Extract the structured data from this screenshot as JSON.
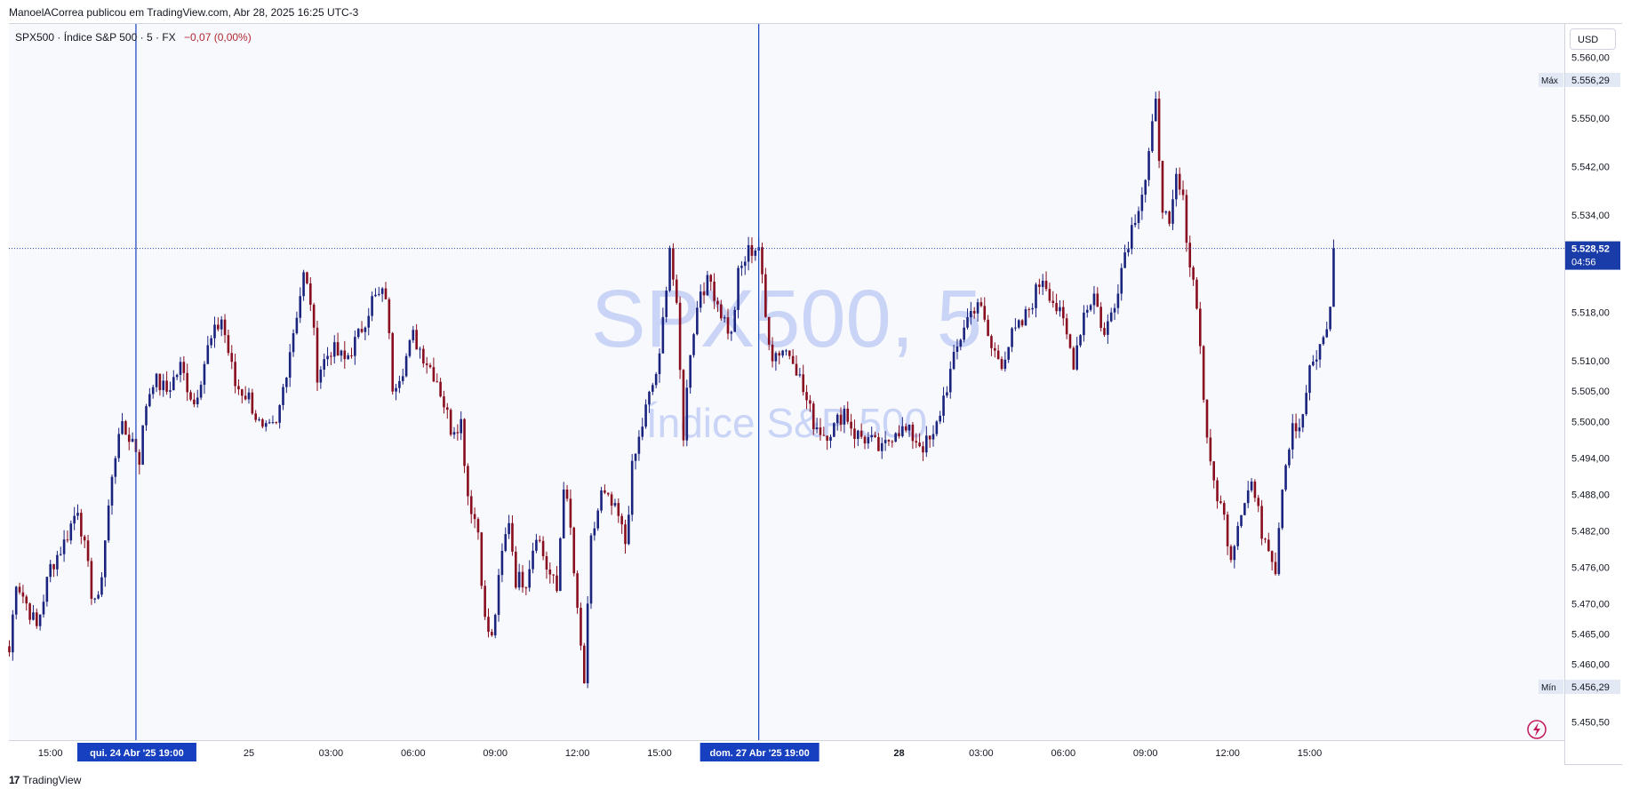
{
  "header": {
    "publisher_text": "ManoelACorrea publicou em TradingView.com, Abr 28, 2025 16:25 UTC-3"
  },
  "legend": {
    "symbol": "SPX500",
    "description": "Índice S&P 500",
    "interval": "5",
    "source": "FX",
    "change": "−0,07 (0,00%)"
  },
  "watermark": {
    "line1": "SPX500, 5",
    "line2": "Índice S&P 500"
  },
  "currency_button": "USD",
  "footer": {
    "brand": "TradingView"
  },
  "colors": {
    "up": "#1a237e",
    "down": "#880e1f",
    "marker_line": "#1640bf",
    "watermark": "#c9d4f6",
    "last_price_bg": "#1a3ca8"
  },
  "chart_data": {
    "type": "candlestick",
    "interval_minutes": 5,
    "ylim": [
      5447.5,
      5565.5
    ],
    "price_ticks": [
      {
        "value": 5560,
        "label": "5.560,00"
      },
      {
        "value": 5550,
        "label": "5.550,00"
      },
      {
        "value": 5542,
        "label": "5.542,00"
      },
      {
        "value": 5534,
        "label": "5.534,00"
      },
      {
        "value": 5518,
        "label": "5.518,00"
      },
      {
        "value": 5510,
        "label": "5.510,00"
      },
      {
        "value": 5505,
        "label": "5.505,00"
      },
      {
        "value": 5500,
        "label": "5.500,00"
      },
      {
        "value": 5494,
        "label": "5.494,00"
      },
      {
        "value": 5488,
        "label": "5.488,00"
      },
      {
        "value": 5482,
        "label": "5.482,00"
      },
      {
        "value": 5476,
        "label": "5.476,00"
      },
      {
        "value": 5470,
        "label": "5.470,00"
      },
      {
        "value": 5465,
        "label": "5.465,00"
      },
      {
        "value": 5460,
        "label": "5.460,00"
      },
      {
        "value": 5450.5,
        "label": "5.450,50"
      }
    ],
    "time_ticks": [
      {
        "bar": 12,
        "label": "15:00",
        "bold": false
      },
      {
        "bar": 70,
        "label": "25",
        "bold": false
      },
      {
        "bar": 94,
        "label": "03:00",
        "bold": false
      },
      {
        "bar": 118,
        "label": "06:00",
        "bold": false
      },
      {
        "bar": 142,
        "label": "09:00",
        "bold": false
      },
      {
        "bar": 166,
        "label": "12:00",
        "bold": false
      },
      {
        "bar": 190,
        "label": "15:00",
        "bold": false
      },
      {
        "bar": 260,
        "label": "28",
        "bold": true
      },
      {
        "bar": 284,
        "label": "03:00",
        "bold": false
      },
      {
        "bar": 308,
        "label": "06:00",
        "bold": false
      },
      {
        "bar": 332,
        "label": "09:00",
        "bold": false
      },
      {
        "bar": 356,
        "label": "12:00",
        "bold": false
      },
      {
        "bar": 380,
        "label": "15:00",
        "bold": false
      }
    ],
    "markers": [
      {
        "bar": 37,
        "label": "qui. 24 Abr '25   19:00"
      },
      {
        "bar": 219,
        "label": "dom. 27 Abr '25   19:00"
      }
    ],
    "last_price": {
      "value": 5528.52,
      "label": "5.528,52",
      "countdown": "04:56"
    },
    "high": {
      "value": 5556.29,
      "label": "5.556,29",
      "tag": "Máx"
    },
    "low": {
      "value": 5456.29,
      "label": "5.456,29",
      "tag": "Mín"
    },
    "close_path": [
      [
        0,
        5462
      ],
      [
        2,
        5474
      ],
      [
        5,
        5470
      ],
      [
        8,
        5466
      ],
      [
        12,
        5476
      ],
      [
        16,
        5480
      ],
      [
        20,
        5486
      ],
      [
        24,
        5472
      ],
      [
        26,
        5470
      ],
      [
        29,
        5486
      ],
      [
        32,
        5499
      ],
      [
        36,
        5497
      ],
      [
        38,
        5494
      ],
      [
        40,
        5503
      ],
      [
        42,
        5507
      ],
      [
        46,
        5505
      ],
      [
        50,
        5509
      ],
      [
        54,
        5503
      ],
      [
        58,
        5512
      ],
      [
        62,
        5517
      ],
      [
        66,
        5506
      ],
      [
        70,
        5504
      ],
      [
        74,
        5498
      ],
      [
        78,
        5499
      ],
      [
        82,
        5512
      ],
      [
        86,
        5524
      ],
      [
        88,
        5520
      ],
      [
        90,
        5508
      ],
      [
        94,
        5512
      ],
      [
        98,
        5510
      ],
      [
        102,
        5514
      ],
      [
        106,
        5520
      ],
      [
        110,
        5521
      ],
      [
        112,
        5506
      ],
      [
        115,
        5509
      ],
      [
        118,
        5514
      ],
      [
        121,
        5511
      ],
      [
        125,
        5507
      ],
      [
        129,
        5499
      ],
      [
        132,
        5500
      ],
      [
        134,
        5488
      ],
      [
        137,
        5482
      ],
      [
        139,
        5467
      ],
      [
        141,
        5464
      ],
      [
        144,
        5478
      ],
      [
        146,
        5484
      ],
      [
        148,
        5474
      ],
      [
        151,
        5474
      ],
      [
        154,
        5482
      ],
      [
        157,
        5476
      ],
      [
        160,
        5472
      ],
      [
        162,
        5490
      ],
      [
        164,
        5482
      ],
      [
        166,
        5468
      ],
      [
        168,
        5457
      ],
      [
        170,
        5480
      ],
      [
        173,
        5488
      ],
      [
        176,
        5486
      ],
      [
        178,
        5484
      ],
      [
        180,
        5480
      ],
      [
        182,
        5492
      ],
      [
        186,
        5502
      ],
      [
        190,
        5510
      ],
      [
        192,
        5523
      ],
      [
        193,
        5529
      ],
      [
        195,
        5518
      ],
      [
        197,
        5498
      ],
      [
        199,
        5512
      ],
      [
        202,
        5522
      ],
      [
        205,
        5523
      ],
      [
        208,
        5518
      ],
      [
        211,
        5514
      ],
      [
        213,
        5524
      ],
      [
        216,
        5528
      ],
      [
        219,
        5529
      ],
      [
        221,
        5517
      ],
      [
        223,
        5511
      ],
      [
        226,
        5512
      ],
      [
        229,
        5511
      ],
      [
        232,
        5505
      ],
      [
        235,
        5500
      ],
      [
        238,
        5498
      ],
      [
        241,
        5499
      ],
      [
        244,
        5502
      ],
      [
        247,
        5498
      ],
      [
        251,
        5497
      ],
      [
        255,
        5495
      ],
      [
        259,
        5499
      ],
      [
        263,
        5498
      ],
      [
        267,
        5496
      ],
      [
        270,
        5497
      ],
      [
        273,
        5504
      ],
      [
        276,
        5510
      ],
      [
        279,
        5516
      ],
      [
        283,
        5520
      ],
      [
        287,
        5512
      ],
      [
        290,
        5510
      ],
      [
        293,
        5514
      ],
      [
        296,
        5516
      ],
      [
        299,
        5520
      ],
      [
        302,
        5524
      ],
      [
        305,
        5520
      ],
      [
        308,
        5516
      ],
      [
        311,
        5510
      ],
      [
        314,
        5518
      ],
      [
        317,
        5521
      ],
      [
        320,
        5514
      ],
      [
        323,
        5520
      ],
      [
        326,
        5528
      ],
      [
        329,
        5534
      ],
      [
        332,
        5540
      ],
      [
        335,
        5552
      ],
      [
        337,
        5536
      ],
      [
        339,
        5531
      ],
      [
        341,
        5540
      ],
      [
        343,
        5536
      ],
      [
        345,
        5526
      ],
      [
        347,
        5520
      ],
      [
        349,
        5504
      ],
      [
        351,
        5492
      ],
      [
        353,
        5488
      ],
      [
        355,
        5484
      ],
      [
        357,
        5478
      ],
      [
        360,
        5486
      ],
      [
        363,
        5490
      ],
      [
        366,
        5482
      ],
      [
        368,
        5480
      ],
      [
        370,
        5476
      ],
      [
        372,
        5490
      ],
      [
        375,
        5500
      ],
      [
        377,
        5498
      ],
      [
        380,
        5508
      ],
      [
        383,
        5512
      ],
      [
        386,
        5518
      ],
      [
        387,
        5528.52
      ]
    ],
    "notes": "Approximately 388 five-minute candles; close_path gives the approximate closing-price trajectory (bar index, price) read from the chart."
  }
}
